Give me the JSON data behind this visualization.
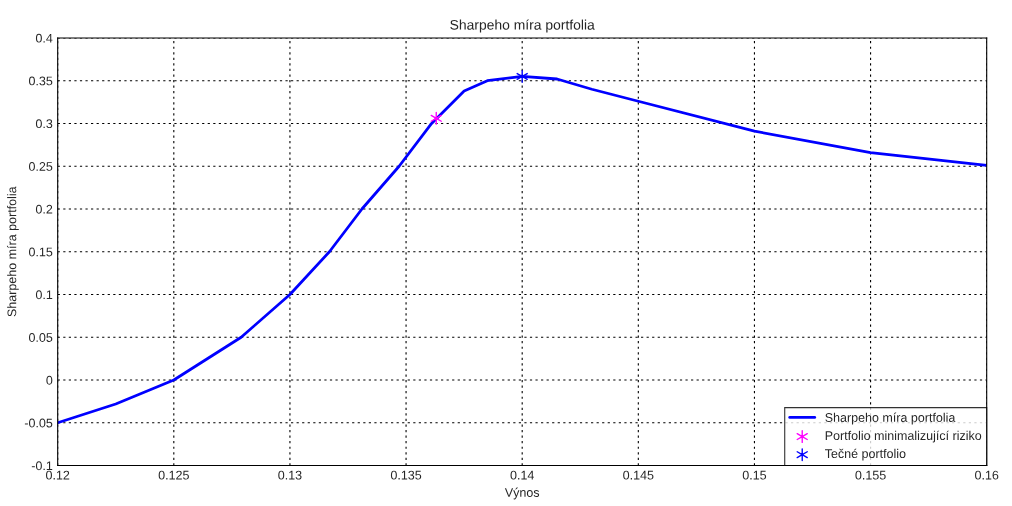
{
  "chart_data": {
    "type": "line",
    "title": "Sharpeho míra portfolia",
    "xlabel": "Výnos",
    "ylabel": "Sharpeho míra portfolia",
    "xlim": [
      0.12,
      0.16
    ],
    "xticks": [
      0.12,
      0.125,
      0.13,
      0.135,
      0.14,
      0.145,
      0.15,
      0.155,
      0.16
    ],
    "ylim": [
      -0.1,
      0.4
    ],
    "yticks": [
      -0.1,
      -0.05,
      0,
      0.05,
      0.1,
      0.15,
      0.2,
      0.25,
      0.3,
      0.35,
      0.4
    ],
    "grid": true,
    "legend": "bottom right",
    "series": [
      {
        "name": "Sharpeho míra portfolia",
        "color": "#0000ff",
        "x": [
          0.12,
          0.1225,
          0.125,
          0.1279,
          0.13,
          0.1317,
          0.1331,
          0.1347,
          0.1361,
          0.1375,
          0.1385,
          0.14,
          0.1415,
          0.143,
          0.145,
          0.15,
          0.155,
          0.16
        ],
        "values": [
          -0.05,
          -0.028,
          0.0,
          0.05,
          0.1,
          0.15,
          0.2,
          0.25,
          0.3,
          0.338,
          0.35,
          0.355,
          0.352,
          0.34,
          0.326,
          0.291,
          0.266,
          0.251
        ]
      },
      {
        "name": "Portfolio minimalizující riziko",
        "type": "scatter",
        "color": "#ff00ff",
        "marker": "cross",
        "x": [
          0.1363
        ],
        "values": [
          0.306
        ]
      },
      {
        "name": "Tečné portfolio",
        "type": "scatter",
        "color": "#0000ff",
        "marker": "cross",
        "x": [
          0.14
        ],
        "values": [
          0.355
        ]
      }
    ]
  }
}
